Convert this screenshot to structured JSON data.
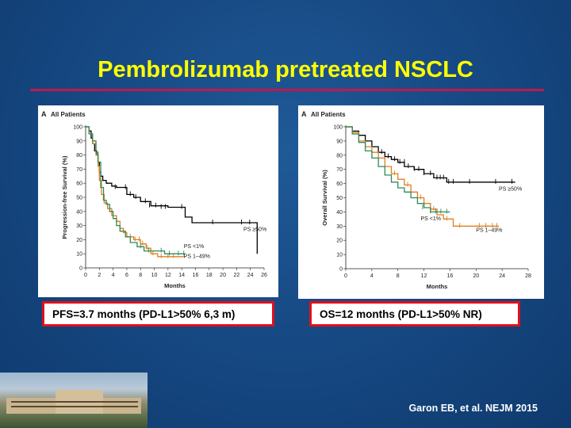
{
  "slide": {
    "title": "Pembrolizumab pretreated NSCLC",
    "citation": "Garon EB, et al. NEJM 2015",
    "callout_pfs": "PFS=3.7 months (PD-L1>50% 6,3 m)",
    "callout_os": "OS=12 months (PD-L1>50% NR)",
    "colors": {
      "title": "#ffff00",
      "rule": "#c4174a",
      "callout_border": "#e0101a",
      "background": "#174a85"
    },
    "photo": "hospital-building-photo"
  },
  "chart_data": [
    {
      "type": "line",
      "panel_label": "A",
      "title": "All Patients",
      "xlabel": "Months",
      "ylabel": "Progression-free Survival (%)",
      "xlim": [
        0,
        26
      ],
      "ylim": [
        0,
        100
      ],
      "xticks": [
        0,
        2,
        4,
        6,
        8,
        10,
        12,
        14,
        16,
        18,
        20,
        22,
        24,
        26
      ],
      "yticks": [
        0,
        10,
        20,
        30,
        40,
        50,
        60,
        70,
        80,
        90,
        100
      ],
      "series": [
        {
          "name": "PS ≥50%",
          "color": "#000000",
          "x": [
            0,
            0.5,
            0.8,
            1.0,
            1.3,
            1.6,
            1.8,
            2.0,
            2.2,
            2.5,
            3.0,
            3.8,
            4.5,
            6.0,
            7.0,
            8.0,
            9.5,
            12.0,
            14.5,
            15.5,
            24.0,
            25.0
          ],
          "y": [
            100,
            97,
            92,
            88,
            83,
            80,
            75,
            68,
            65,
            62,
            60,
            58,
            57,
            52,
            50,
            47,
            44,
            43,
            36,
            32,
            32,
            10
          ],
          "censor_x": [
            4.3,
            5.8,
            6.5,
            7.3,
            8.7,
            9.3,
            10.2,
            11.0,
            11.6,
            14.0,
            18.5,
            22.7,
            23.9
          ],
          "censor_y": [
            57,
            57,
            52,
            50,
            47,
            44,
            44,
            43,
            43,
            43,
            32,
            32,
            32
          ]
        },
        {
          "name": "PS 1–49%",
          "color": "#e07d1e",
          "x": [
            0,
            0.5,
            1.0,
            1.5,
            1.8,
            2.0,
            2.3,
            2.7,
            3.2,
            3.8,
            4.5,
            5.0,
            5.5,
            6.0,
            7.0,
            8.0,
            8.8,
            9.5,
            10.5,
            14.5
          ],
          "y": [
            100,
            95,
            88,
            80,
            72,
            62,
            52,
            46,
            42,
            37,
            33,
            28,
            25,
            22,
            20,
            17,
            14,
            10,
            8,
            8
          ],
          "censor_x": [
            6.5,
            7.2,
            7.8,
            8.3,
            9.0,
            9.8,
            11.0,
            12.0,
            12.8
          ],
          "censor_y": [
            22,
            20,
            20,
            17,
            14,
            10,
            8,
            8,
            8
          ]
        },
        {
          "name": "PS <1%",
          "color": "#2e8b57",
          "x": [
            0,
            0.5,
            1.0,
            1.5,
            1.8,
            2.2,
            2.6,
            3.0,
            3.5,
            4.0,
            4.5,
            5.0,
            5.8,
            6.5,
            7.5,
            8.5,
            10.0,
            11.5,
            12.5,
            14.5
          ],
          "y": [
            100,
            95,
            90,
            82,
            75,
            57,
            48,
            45,
            40,
            35,
            30,
            26,
            22,
            18,
            15,
            12,
            12,
            10,
            10,
            10
          ],
          "censor_x": [
            8.0,
            9.2,
            11.0,
            12.2,
            13.5,
            14.3
          ],
          "censor_y": [
            15,
            12,
            12,
            10,
            10,
            10
          ]
        }
      ],
      "labels": [
        {
          "text": "PS ≥50%",
          "x": 23.0,
          "y": 26
        },
        {
          "text": "PS <1%",
          "x": 14.3,
          "y": 14
        },
        {
          "text": "PS 1–49%",
          "x": 14.3,
          "y": 7
        }
      ]
    },
    {
      "type": "line",
      "panel_label": "A",
      "title": "All Patients",
      "xlabel": "Months",
      "ylabel": "Overall Survival (%)",
      "xlim": [
        0,
        28
      ],
      "ylim": [
        0,
        100
      ],
      "xticks": [
        0,
        4,
        8,
        12,
        16,
        20,
        24,
        28
      ],
      "yticks": [
        0,
        10,
        20,
        30,
        40,
        50,
        60,
        70,
        80,
        90,
        100
      ],
      "series": [
        {
          "name": "PS ≥50%",
          "color": "#000000",
          "x": [
            0,
            1.0,
            2.0,
            3.0,
            4.0,
            5.0,
            6.0,
            7.0,
            8.0,
            9.0,
            10.5,
            12.0,
            13.5,
            15.5,
            26.0
          ],
          "y": [
            100,
            97,
            94,
            90,
            86,
            82,
            79,
            77,
            75,
            72,
            70,
            67,
            64,
            61,
            61
          ],
          "censor_x": [
            5.5,
            6.5,
            7.5,
            8.3,
            9.0,
            9.6,
            10.5,
            11.2,
            12.0,
            13.0,
            14.0,
            14.5,
            15.0,
            15.8,
            16.5,
            19.0,
            23.0,
            25.5
          ],
          "censor_y": [
            82,
            79,
            77,
            75,
            75,
            72,
            70,
            70,
            67,
            67,
            64,
            64,
            64,
            61,
            61,
            61,
            61,
            61
          ]
        },
        {
          "name": "PS 1–49%",
          "color": "#e07d1e",
          "x": [
            0,
            1.0,
            2.0,
            3.0,
            4.0,
            5.0,
            6.0,
            7.0,
            8.0,
            9.0,
            10.0,
            11.0,
            12.0,
            13.0,
            14.0,
            15.0,
            16.5,
            23.5
          ],
          "y": [
            100,
            96,
            90,
            86,
            82,
            78,
            72,
            67,
            63,
            59,
            54,
            50,
            46,
            42,
            38,
            35,
            30,
            30
          ],
          "censor_x": [
            7.5,
            9.5,
            11.5,
            13.5,
            15.5,
            17.5,
            20.5,
            21.5,
            22.5,
            23.2
          ],
          "censor_y": [
            67,
            59,
            50,
            42,
            35,
            30,
            30,
            30,
            30,
            30
          ]
        },
        {
          "name": "PS <1%",
          "color": "#2e8b57",
          "x": [
            0,
            1.0,
            2.0,
            3.0,
            4.0,
            5.0,
            6.0,
            7.0,
            8.0,
            9.0,
            10.0,
            11.0,
            12.0,
            13.0,
            16.0
          ],
          "y": [
            100,
            95,
            89,
            83,
            78,
            72,
            66,
            61,
            57,
            54,
            50,
            46,
            43,
            40,
            40
          ],
          "censor_x": [
            11.8,
            13.0,
            13.8,
            14.6,
            15.5
          ],
          "censor_y": [
            43,
            40,
            40,
            40,
            40
          ]
        }
      ],
      "labels": [
        {
          "text": "PS ≥50%",
          "x": 23.5,
          "y": 55
        },
        {
          "text": "PS <1%",
          "x": 11.5,
          "y": 34
        },
        {
          "text": "PS 1–49%",
          "x": 20.0,
          "y": 26
        }
      ]
    }
  ]
}
